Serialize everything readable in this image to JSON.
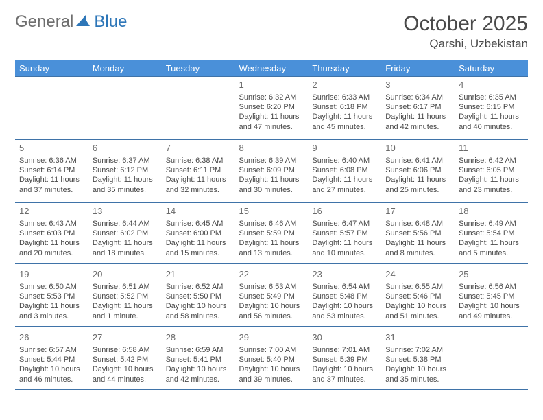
{
  "colors": {
    "header_bg": "#4a90d9",
    "header_text": "#ffffff",
    "row_border": "#3f73a8",
    "body_text": "#4a4a4a",
    "logo_gray": "#6e6e6e",
    "logo_blue": "#2d76b8",
    "background": "#ffffff"
  },
  "typography": {
    "month_fontsize": 30,
    "location_fontsize": 17,
    "dayhead_fontsize": 13,
    "daynum_fontsize": 13,
    "cell_fontsize": 11
  },
  "logo": {
    "part1": "General",
    "part2": "Blue"
  },
  "title": "October 2025",
  "location": "Qarshi, Uzbekistan",
  "day_names": [
    "Sunday",
    "Monday",
    "Tuesday",
    "Wednesday",
    "Thursday",
    "Friday",
    "Saturday"
  ],
  "weeks": [
    [
      null,
      null,
      null,
      {
        "d": "1",
        "sr": "6:32 AM",
        "ss": "6:20 PM",
        "dl": "11 hours and 47 minutes."
      },
      {
        "d": "2",
        "sr": "6:33 AM",
        "ss": "6:18 PM",
        "dl": "11 hours and 45 minutes."
      },
      {
        "d": "3",
        "sr": "6:34 AM",
        "ss": "6:17 PM",
        "dl": "11 hours and 42 minutes."
      },
      {
        "d": "4",
        "sr": "6:35 AM",
        "ss": "6:15 PM",
        "dl": "11 hours and 40 minutes."
      }
    ],
    [
      {
        "d": "5",
        "sr": "6:36 AM",
        "ss": "6:14 PM",
        "dl": "11 hours and 37 minutes."
      },
      {
        "d": "6",
        "sr": "6:37 AM",
        "ss": "6:12 PM",
        "dl": "11 hours and 35 minutes."
      },
      {
        "d": "7",
        "sr": "6:38 AM",
        "ss": "6:11 PM",
        "dl": "11 hours and 32 minutes."
      },
      {
        "d": "8",
        "sr": "6:39 AM",
        "ss": "6:09 PM",
        "dl": "11 hours and 30 minutes."
      },
      {
        "d": "9",
        "sr": "6:40 AM",
        "ss": "6:08 PM",
        "dl": "11 hours and 27 minutes."
      },
      {
        "d": "10",
        "sr": "6:41 AM",
        "ss": "6:06 PM",
        "dl": "11 hours and 25 minutes."
      },
      {
        "d": "11",
        "sr": "6:42 AM",
        "ss": "6:05 PM",
        "dl": "11 hours and 23 minutes."
      }
    ],
    [
      {
        "d": "12",
        "sr": "6:43 AM",
        "ss": "6:03 PM",
        "dl": "11 hours and 20 minutes."
      },
      {
        "d": "13",
        "sr": "6:44 AM",
        "ss": "6:02 PM",
        "dl": "11 hours and 18 minutes."
      },
      {
        "d": "14",
        "sr": "6:45 AM",
        "ss": "6:00 PM",
        "dl": "11 hours and 15 minutes."
      },
      {
        "d": "15",
        "sr": "6:46 AM",
        "ss": "5:59 PM",
        "dl": "11 hours and 13 minutes."
      },
      {
        "d": "16",
        "sr": "6:47 AM",
        "ss": "5:57 PM",
        "dl": "11 hours and 10 minutes."
      },
      {
        "d": "17",
        "sr": "6:48 AM",
        "ss": "5:56 PM",
        "dl": "11 hours and 8 minutes."
      },
      {
        "d": "18",
        "sr": "6:49 AM",
        "ss": "5:54 PM",
        "dl": "11 hours and 5 minutes."
      }
    ],
    [
      {
        "d": "19",
        "sr": "6:50 AM",
        "ss": "5:53 PM",
        "dl": "11 hours and 3 minutes."
      },
      {
        "d": "20",
        "sr": "6:51 AM",
        "ss": "5:52 PM",
        "dl": "11 hours and 1 minute."
      },
      {
        "d": "21",
        "sr": "6:52 AM",
        "ss": "5:50 PM",
        "dl": "10 hours and 58 minutes."
      },
      {
        "d": "22",
        "sr": "6:53 AM",
        "ss": "5:49 PM",
        "dl": "10 hours and 56 minutes."
      },
      {
        "d": "23",
        "sr": "6:54 AM",
        "ss": "5:48 PM",
        "dl": "10 hours and 53 minutes."
      },
      {
        "d": "24",
        "sr": "6:55 AM",
        "ss": "5:46 PM",
        "dl": "10 hours and 51 minutes."
      },
      {
        "d": "25",
        "sr": "6:56 AM",
        "ss": "5:45 PM",
        "dl": "10 hours and 49 minutes."
      }
    ],
    [
      {
        "d": "26",
        "sr": "6:57 AM",
        "ss": "5:44 PM",
        "dl": "10 hours and 46 minutes."
      },
      {
        "d": "27",
        "sr": "6:58 AM",
        "ss": "5:42 PM",
        "dl": "10 hours and 44 minutes."
      },
      {
        "d": "28",
        "sr": "6:59 AM",
        "ss": "5:41 PM",
        "dl": "10 hours and 42 minutes."
      },
      {
        "d": "29",
        "sr": "7:00 AM",
        "ss": "5:40 PM",
        "dl": "10 hours and 39 minutes."
      },
      {
        "d": "30",
        "sr": "7:01 AM",
        "ss": "5:39 PM",
        "dl": "10 hours and 37 minutes."
      },
      {
        "d": "31",
        "sr": "7:02 AM",
        "ss": "5:38 PM",
        "dl": "10 hours and 35 minutes."
      },
      null
    ]
  ],
  "labels": {
    "sunrise": "Sunrise:",
    "sunset": "Sunset:",
    "daylight": "Daylight:"
  }
}
